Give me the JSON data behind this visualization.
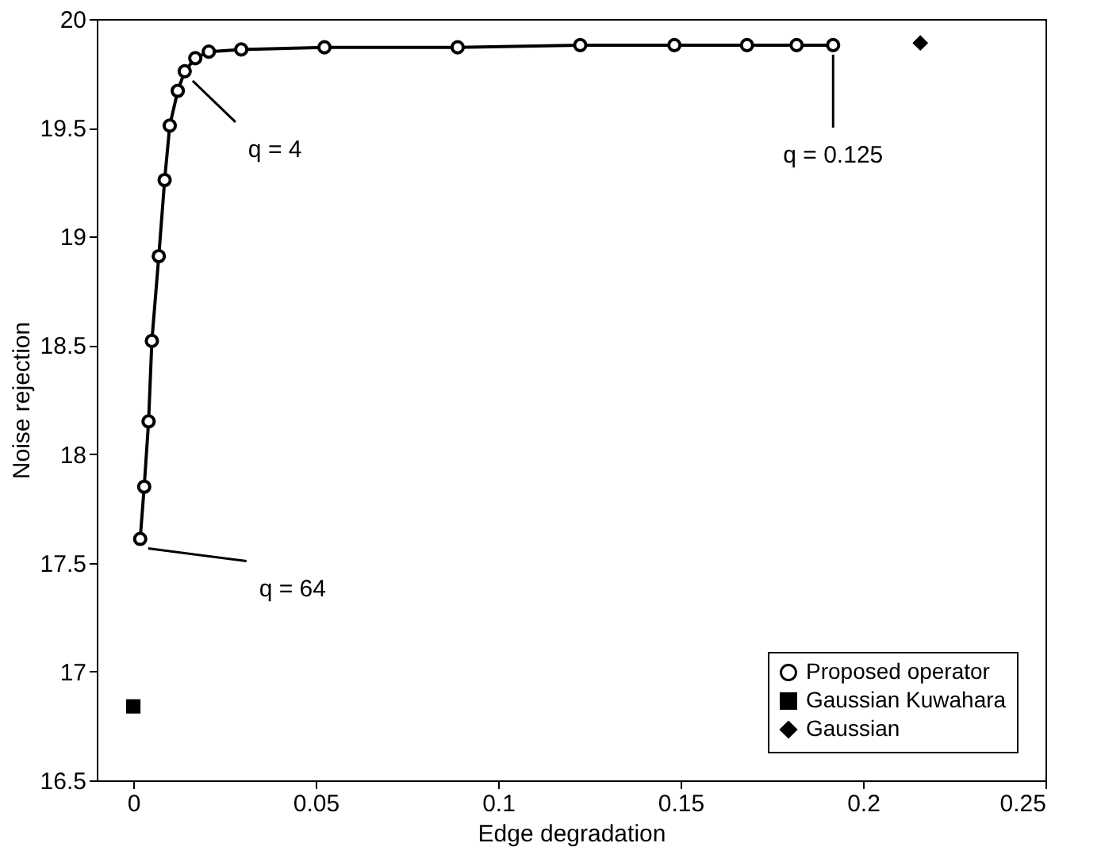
{
  "chart_data": {
    "type": "line",
    "xlabel": "Edge degradation",
    "ylabel": "Noise rejection",
    "xlim": [
      -0.01,
      0.25
    ],
    "xticks": [
      0,
      0.05,
      0.1,
      0.15,
      0.2,
      0.25
    ],
    "ylim": [
      16.5,
      20
    ],
    "yticks": [
      16.5,
      17,
      17.5,
      18,
      18.5,
      19,
      19.5,
      20
    ],
    "grid": false,
    "legend": "bottom right",
    "series": [
      {
        "name": "Proposed operator",
        "marker": "circle",
        "color": "#000000",
        "x": [
          0.0019,
          0.003,
          0.0042,
          0.0051,
          0.007,
          0.0086,
          0.01,
          0.0122,
          0.0141,
          0.017,
          0.0207,
          0.0296,
          0.0524,
          0.0889,
          0.1225,
          0.1483,
          0.1682,
          0.1818,
          0.1918
        ],
        "values": [
          17.61,
          17.85,
          18.15,
          18.52,
          18.91,
          19.26,
          19.51,
          19.67,
          19.76,
          19.82,
          19.85,
          19.86,
          19.87,
          19.87,
          19.88,
          19.88,
          19.88,
          19.88,
          19.88
        ]
      },
      {
        "name": "Gaussian Kuwahara",
        "type": "scatter",
        "marker": "square",
        "color": "#000000",
        "x": [
          0
        ],
        "values": [
          16.84
        ]
      },
      {
        "name": "Gaussian",
        "type": "scatter",
        "marker": "diamond",
        "color": "#000000",
        "x": [
          0.2157
        ],
        "values": [
          19.89
        ]
      }
    ],
    "annotations": [
      {
        "text": "q = 64",
        "x": 0.0019,
        "y": 17.61
      },
      {
        "text": "q = 4",
        "x": 0.0141,
        "y": 19.76
      },
      {
        "text": "q = 0.125",
        "x": 0.1918,
        "y": 19.88
      }
    ]
  }
}
